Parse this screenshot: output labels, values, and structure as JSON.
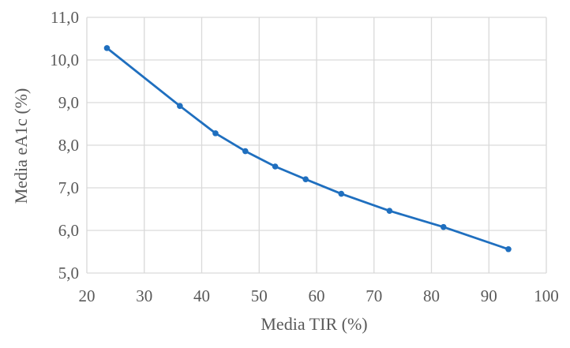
{
  "chart_data": {
    "type": "line",
    "title": "",
    "xlabel": "Media TIR (%)",
    "ylabel": "Media eA1c (%)",
    "xlim": [
      20,
      100
    ],
    "ylim": [
      5.0,
      11.0
    ],
    "x_ticks": [
      20,
      30,
      40,
      50,
      60,
      70,
      80,
      90,
      100
    ],
    "x_tick_labels": [
      "20",
      "30",
      "40",
      "50",
      "60",
      "70",
      "80",
      "90",
      "100"
    ],
    "y_ticks": [
      5.0,
      6.0,
      7.0,
      8.0,
      9.0,
      10.0,
      11.0
    ],
    "y_tick_labels": [
      "5,0",
      "6,0",
      "7,0",
      "8,0",
      "9,0",
      "10,0",
      "11,0"
    ],
    "grid": true,
    "legend": "none",
    "series": [
      {
        "color": "#1f6fbf",
        "x": [
          23.5,
          36.2,
          42.4,
          47.6,
          52.8,
          58.1,
          64.3,
          72.7,
          82.1,
          93.4
        ],
        "y": [
          10.28,
          8.92,
          8.28,
          7.86,
          7.5,
          7.2,
          6.86,
          6.46,
          6.08,
          5.56
        ]
      }
    ]
  }
}
